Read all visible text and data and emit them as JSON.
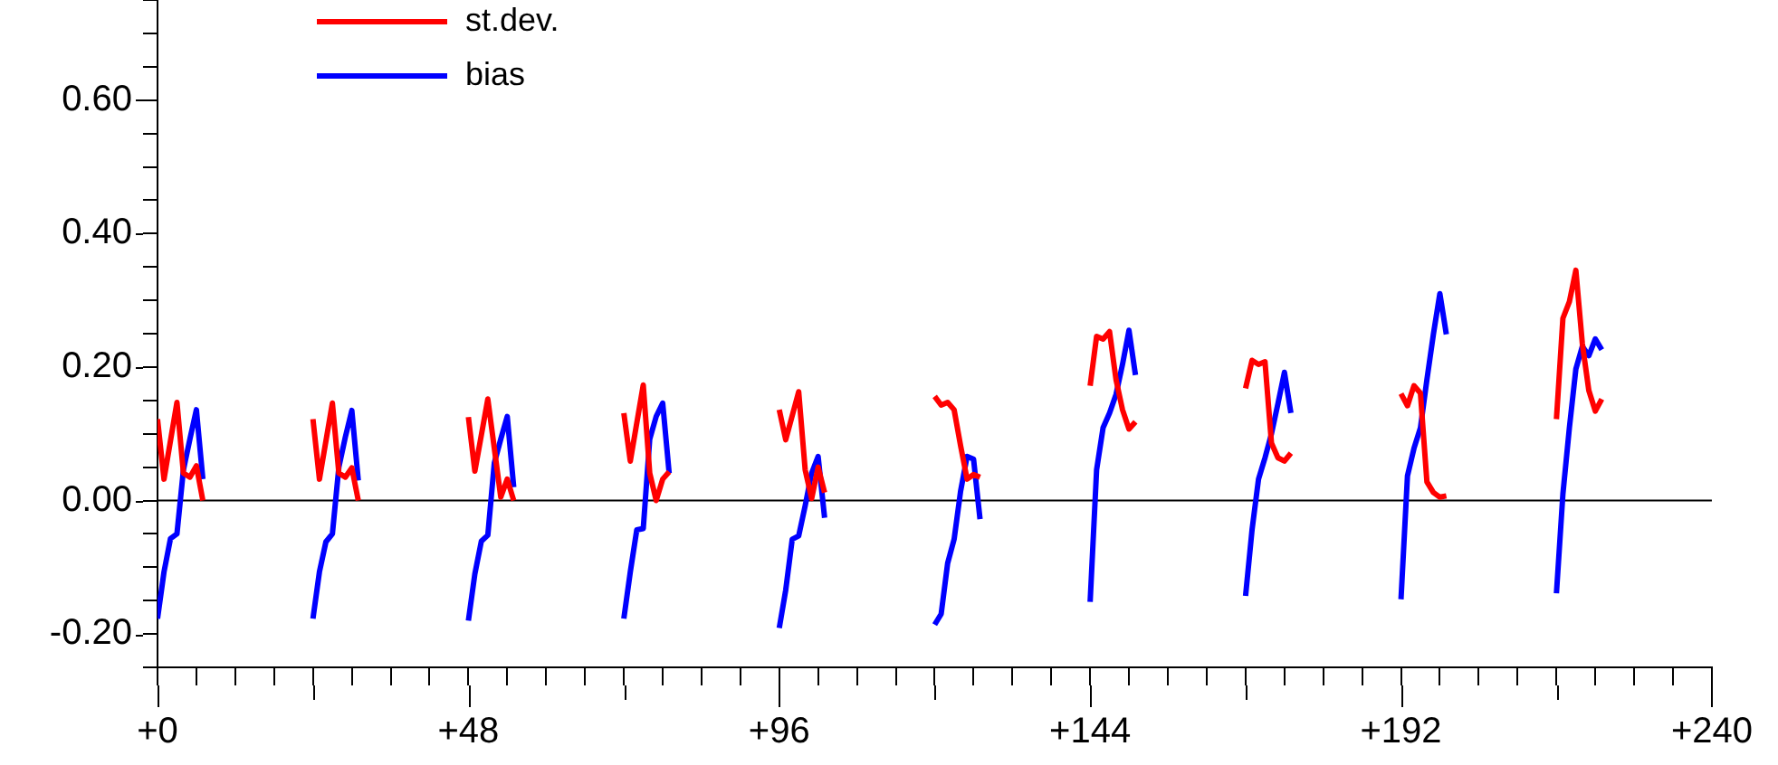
{
  "chart_data": {
    "type": "line",
    "legend": "top left",
    "marker": "none",
    "line_style": "solid",
    "xlim": [
      0,
      240
    ],
    "ylim": [
      -0.25,
      0.75
    ],
    "xticks": [
      {
        "value": 0,
        "label": "+0"
      },
      {
        "value": 6,
        "label": null
      },
      {
        "value": 12,
        "label": null
      },
      {
        "value": 18,
        "label": null
      },
      {
        "value": 24,
        "label": null
      },
      {
        "value": 30,
        "label": null
      },
      {
        "value": 36,
        "label": null
      },
      {
        "value": 42,
        "label": null
      },
      {
        "value": 48,
        "label": "+48"
      },
      {
        "value": 54,
        "label": null
      },
      {
        "value": 60,
        "label": null
      },
      {
        "value": 66,
        "label": null
      },
      {
        "value": 72,
        "label": null
      },
      {
        "value": 78,
        "label": null
      },
      {
        "value": 84,
        "label": null
      },
      {
        "value": 90,
        "label": null
      },
      {
        "value": 96,
        "label": "+96"
      },
      {
        "value": 102,
        "label": null
      },
      {
        "value": 108,
        "label": null
      },
      {
        "value": 114,
        "label": null
      },
      {
        "value": 120,
        "label": null
      },
      {
        "value": 126,
        "label": null
      },
      {
        "value": 132,
        "label": null
      },
      {
        "value": 138,
        "label": null
      },
      {
        "value": 144,
        "label": "+144"
      },
      {
        "value": 150,
        "label": null
      },
      {
        "value": 156,
        "label": null
      },
      {
        "value": 162,
        "label": null
      },
      {
        "value": 168,
        "label": null
      },
      {
        "value": 174,
        "label": null
      },
      {
        "value": 180,
        "label": null
      },
      {
        "value": 186,
        "label": null
      },
      {
        "value": 192,
        "label": "+192"
      },
      {
        "value": 198,
        "label": null
      },
      {
        "value": 204,
        "label": null
      },
      {
        "value": 210,
        "label": null
      },
      {
        "value": 216,
        "label": null
      },
      {
        "value": 222,
        "label": null
      },
      {
        "value": 228,
        "label": null
      },
      {
        "value": 234,
        "label": null
      },
      {
        "value": 240,
        "label": "+240"
      }
    ],
    "yticks": [
      {
        "value": -0.25,
        "label": null
      },
      {
        "value": -0.2,
        "label": "-0.20"
      },
      {
        "value": -0.15,
        "label": null
      },
      {
        "value": -0.1,
        "label": null
      },
      {
        "value": -0.05,
        "label": null
      },
      {
        "value": 0,
        "label": "0.00"
      },
      {
        "value": 0.05,
        "label": null
      },
      {
        "value": 0.1,
        "label": null
      },
      {
        "value": 0.15,
        "label": null
      },
      {
        "value": 0.2,
        "label": "0.20"
      },
      {
        "value": 0.25,
        "label": null
      },
      {
        "value": 0.3,
        "label": null
      },
      {
        "value": 0.35,
        "label": null
      },
      {
        "value": 0.4,
        "label": "0.40"
      },
      {
        "value": 0.45,
        "label": null
      },
      {
        "value": 0.5,
        "label": null
      },
      {
        "value": 0.55,
        "label": null
      },
      {
        "value": 0.6,
        "label": "0.60"
      },
      {
        "value": 0.65,
        "label": null
      },
      {
        "value": 0.7,
        "label": null
      },
      {
        "value": 0.75,
        "label": null
      }
    ],
    "ref_lines": [
      {
        "axis": "y",
        "value": 0,
        "color": "#000000"
      }
    ],
    "series": [
      {
        "name": "st.dev.",
        "color": "#ff0000",
        "x": [
          0,
          1,
          3,
          4,
          5,
          6,
          7,
          12,
          24,
          25,
          27,
          28,
          29,
          30,
          31,
          36,
          48,
          49,
          51,
          53,
          54,
          55,
          60,
          72,
          73,
          75,
          76,
          77,
          78,
          79,
          84,
          96,
          97,
          99,
          100,
          101,
          102,
          103,
          108,
          120,
          121,
          122,
          123,
          124,
          125,
          126,
          127,
          132,
          144,
          145,
          146,
          147,
          148,
          149,
          150,
          151,
          156,
          168,
          169,
          170,
          171,
          172,
          173,
          174,
          175,
          180,
          192,
          193,
          194,
          195,
          196,
          197,
          198,
          199,
          204,
          216,
          217,
          218,
          219,
          220,
          221,
          222,
          223
        ],
        "values": [
          0.122,
          0.032,
          0.147,
          0.041,
          0.035,
          0.052,
          0.0,
          null,
          0.122,
          0.032,
          0.146,
          0.041,
          0.035,
          0.049,
          0.0,
          null,
          0.125,
          0.044,
          0.152,
          0.005,
          0.032,
          0.0,
          null,
          0.131,
          0.059,
          0.173,
          0.041,
          0.0,
          0.032,
          0.043,
          null,
          0.136,
          0.091,
          0.163,
          0.046,
          0.003,
          0.05,
          0.012,
          null,
          0.156,
          0.143,
          0.147,
          0.136,
          0.082,
          0.032,
          0.039,
          0.035,
          null,
          0.172,
          0.246,
          0.242,
          0.253,
          0.181,
          0.136,
          0.107,
          0.118,
          null,
          0.168,
          0.21,
          0.204,
          0.208,
          0.086,
          0.064,
          0.059,
          0.071,
          null,
          0.16,
          0.142,
          0.172,
          0.161,
          0.028,
          0.012,
          0.005,
          0.007,
          null,
          0.122,
          0.273,
          0.298,
          0.345,
          0.235,
          0.165,
          0.134,
          0.152
        ]
      },
      {
        "name": "bias",
        "color": "#0000ff",
        "x": [
          0,
          1,
          2,
          3,
          4,
          5,
          6,
          7,
          12,
          24,
          25,
          26,
          27,
          28,
          29,
          30,
          31,
          36,
          48,
          49,
          50,
          51,
          52,
          53,
          54,
          55,
          60,
          72,
          73,
          74,
          75,
          76,
          77,
          78,
          79,
          84,
          96,
          97,
          98,
          99,
          100,
          101,
          102,
          103,
          108,
          120,
          121,
          122,
          123,
          124,
          125,
          126,
          127,
          132,
          144,
          145,
          146,
          147,
          148,
          149,
          150,
          151,
          156,
          168,
          169,
          170,
          171,
          172,
          173,
          174,
          175,
          180,
          192,
          193,
          194,
          195,
          196,
          197,
          198,
          199,
          204,
          216,
          217,
          218,
          219,
          220,
          221,
          222,
          223
        ],
        "values": [
          -0.177,
          -0.107,
          -0.057,
          -0.05,
          0.046,
          0.092,
          0.136,
          0.032,
          null,
          -0.177,
          -0.107,
          -0.062,
          -0.05,
          0.05,
          0.095,
          0.135,
          0.03,
          null,
          -0.18,
          -0.11,
          -0.061,
          -0.052,
          0.056,
          0.092,
          0.126,
          0.02,
          null,
          -0.177,
          -0.107,
          -0.044,
          -0.042,
          0.092,
          0.126,
          0.146,
          0.041,
          null,
          -0.191,
          -0.134,
          -0.058,
          -0.053,
          -0.008,
          0.041,
          0.066,
          -0.026,
          null,
          -0.186,
          -0.17,
          -0.094,
          -0.058,
          0.014,
          0.066,
          0.062,
          -0.028,
          null,
          -0.152,
          0.046,
          0.109,
          0.131,
          0.159,
          0.204,
          0.255,
          0.188,
          null,
          -0.143,
          -0.044,
          0.032,
          0.064,
          0.1,
          0.145,
          0.192,
          0.131,
          null,
          -0.148,
          0.037,
          0.078,
          0.109,
          0.181,
          0.249,
          0.31,
          0.249,
          null,
          -0.139,
          0.01,
          0.109,
          0.197,
          0.231,
          0.217,
          0.242,
          0.226
        ]
      }
    ]
  }
}
